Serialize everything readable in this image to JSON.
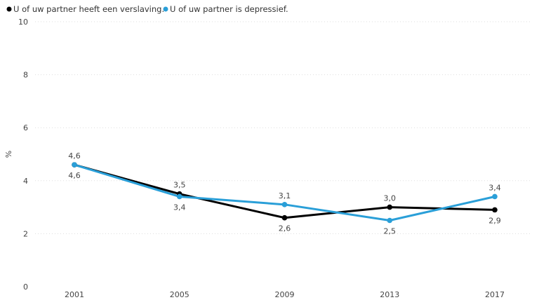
{
  "chart_data": {
    "type": "line",
    "title": "",
    "xlabel": "",
    "ylabel": "%",
    "x": [
      "2001",
      "2005",
      "2009",
      "2013",
      "2017"
    ],
    "ylim": [
      0,
      10
    ],
    "yticks": [
      "0",
      "2",
      "4",
      "6",
      "8",
      "10"
    ],
    "grid": true,
    "legend_position": "top-left",
    "series": [
      {
        "name": "U of uw partner heeft een verslaving.",
        "color": "#000000",
        "values": [
          4.6,
          3.5,
          2.6,
          3.0,
          2.9
        ],
        "labels": [
          "4,6",
          "3,5",
          "2,6",
          "3,0",
          "2,9"
        ],
        "label_positions": [
          "below",
          "above",
          "below",
          "above",
          "below"
        ]
      },
      {
        "name": "U of uw partner is depressief.",
        "color": "#2a9fd8",
        "values": [
          4.6,
          3.4,
          3.1,
          2.5,
          3.4
        ],
        "labels": [
          "4,6",
          "3,4",
          "3,1",
          "2,5",
          "3,4"
        ],
        "label_positions": [
          "above",
          "below",
          "above",
          "below",
          "above"
        ]
      }
    ]
  }
}
